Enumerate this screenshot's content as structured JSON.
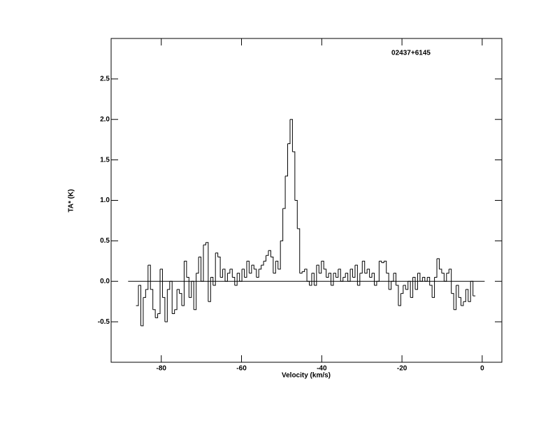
{
  "chart_data": {
    "type": "step",
    "title": "02437+6145",
    "x_label": "Velocity (km/s)",
    "y_label": "TA* (K)",
    "x": [
      -86,
      -85.4,
      -84.8,
      -84.2,
      -83.6,
      -83,
      -82.4,
      -81.8,
      -81.2,
      -80.6,
      -80,
      -79.4,
      -78.8,
      -78.2,
      -77.6,
      -77,
      -76.4,
      -75.8,
      -75.2,
      -74.6,
      -74,
      -73.4,
      -72.8,
      -72.2,
      -71.6,
      -71,
      -70.4,
      -69.8,
      -69.2,
      -68.6,
      -68,
      -67.4,
      -66.8,
      -66.2,
      -65.6,
      -65,
      -64.4,
      -63.8,
      -63.2,
      -62.6,
      -62,
      -61.4,
      -60.8,
      -60.2,
      -59.6,
      -59,
      -58.4,
      -57.8,
      -57.2,
      -56.6,
      -56,
      -55.4,
      -54.8,
      -54.2,
      -53.6,
      -53,
      -52.4,
      -51.8,
      -51.2,
      -50.6,
      -50,
      -49.4,
      -48.8,
      -48.2,
      -47.6,
      -47,
      -46.4,
      -45.8,
      -45.2,
      -44.6,
      -44,
      -43.4,
      -42.8,
      -42.2,
      -41.6,
      -41,
      -40.4,
      -39.8,
      -39.2,
      -38.6,
      -38,
      -37.4,
      -36.8,
      -36.2,
      -35.6,
      -35,
      -34.4,
      -33.8,
      -33.2,
      -32.6,
      -32,
      -31.4,
      -30.8,
      -30.2,
      -29.6,
      -29,
      -28.4,
      -27.8,
      -27.2,
      -26.6,
      -26,
      -25.4,
      -24.8,
      -24.2,
      -23.6,
      -23,
      -22.4,
      -21.8,
      -21.2,
      -20.6,
      -20,
      -19.4,
      -18.8,
      -18.2,
      -17.6,
      -17,
      -16.4,
      -15.8,
      -15.2,
      -14.6,
      -14,
      -13.4,
      -12.8,
      -12.2,
      -11.6,
      -11,
      -10.4,
      -9.8,
      -9.2,
      -8.6,
      -8,
      -7.4,
      -6.8,
      -6.2,
      -5.6,
      -5,
      -4.4,
      -3.8,
      -3.2,
      -2.6,
      -2
    ],
    "values": [
      -0.3,
      -0.05,
      -0.55,
      -0.2,
      -0.1,
      0.2,
      -0.1,
      -0.35,
      -0.45,
      -0.4,
      0.15,
      -0.2,
      -0.5,
      -0.1,
      0.0,
      -0.4,
      -0.35,
      -0.1,
      -0.15,
      -0.3,
      0.25,
      0.05,
      -0.2,
      0.0,
      -0.35,
      0.1,
      0.3,
      0.0,
      0.45,
      0.48,
      -0.25,
      0.05,
      -0.05,
      0.35,
      0.3,
      0.05,
      0.15,
      0.0,
      0.1,
      0.15,
      0.05,
      -0.05,
      0.1,
      0.0,
      0.15,
      0.05,
      0.25,
      0.1,
      0.2,
      0.15,
      0.05,
      0.15,
      0.2,
      0.25,
      0.32,
      0.38,
      0.3,
      0.1,
      0.25,
      0.15,
      0.5,
      0.9,
      1.3,
      1.7,
      2.0,
      1.6,
      1.0,
      0.65,
      0.1,
      0.12,
      0.15,
      0.0,
      -0.05,
      0.1,
      -0.05,
      0.2,
      0.1,
      0.25,
      0.15,
      0.05,
      0.1,
      -0.05,
      0.1,
      0.05,
      0.15,
      0.0,
      0.05,
      0.1,
      0.0,
      0.15,
      0.05,
      0.2,
      -0.05,
      0.1,
      0.25,
      0.1,
      0.15,
      0.05,
      0.1,
      -0.05,
      0.0,
      0.25,
      0.23,
      0.25,
      0.1,
      -0.1,
      0.0,
      0.1,
      -0.05,
      -0.3,
      -0.15,
      -0.05,
      -0.1,
      0.0,
      -0.2,
      0.05,
      -0.1,
      0.1,
      0.0,
      0.05,
      0.0,
      0.05,
      -0.05,
      -0.2,
      0.05,
      0.28,
      0.15,
      0.1,
      0.0,
      0.1,
      0.15,
      -0.15,
      -0.35,
      -0.05,
      -0.2,
      -0.3,
      -0.25,
      -0.1,
      -0.25,
      0.0,
      -0.18
    ],
    "color": "#000000",
    "xlim": [
      -92.5,
      4.9
    ],
    "ylim": [
      -1.0,
      3.0
    ],
    "xticks": [
      -80,
      -60,
      -40,
      -20,
      0
    ],
    "yticks": [
      -0.5,
      {
        "value": 0,
        "label": "0.0"
      },
      0.5,
      {
        "value": 1,
        "label": "1.0"
      },
      1.5,
      {
        "value": 2,
        "label": "2.0"
      },
      2.5
    ]
  }
}
